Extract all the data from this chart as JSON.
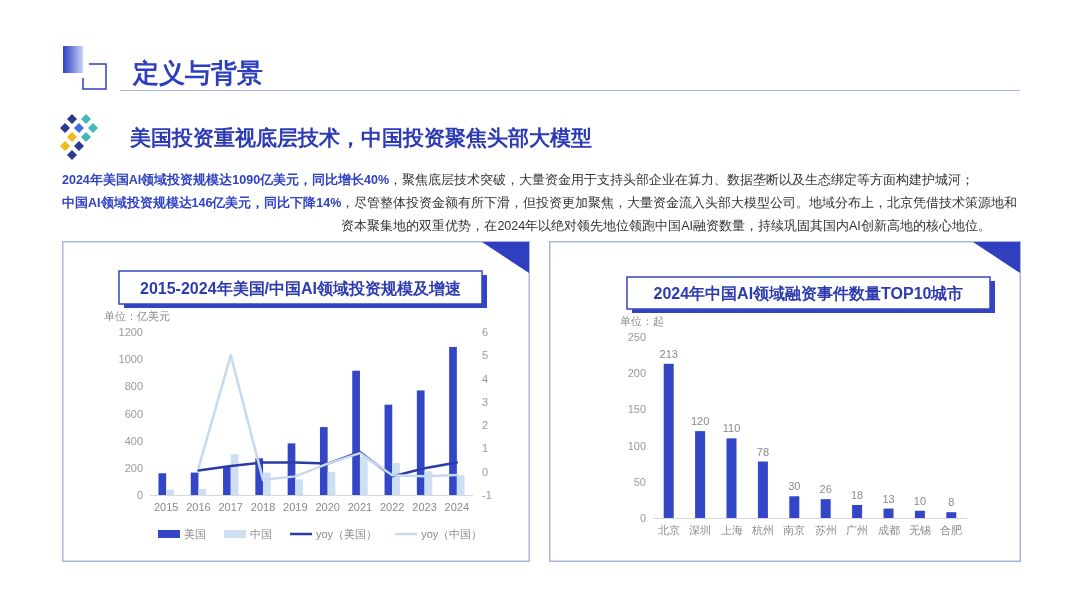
{
  "chart_data": [
    {
      "type": "other",
      "title": "定义与背景",
      "subtitle": "美国投资重视底层技术，中国投资聚焦头部大模型",
      "annotations": [
        "2024年美国AI领域投资规模达1090亿美元，同比增长40%",
        "，聚焦底层技术突破，大量资金用于支持头部企业在算力、数据垄断以及生态绑定等方面构建护城河；",
        "中国AI领域投资规模达146亿美元，同比下降14%",
        "，尽管整体投资金额有所下滑，但投资更加聚焦，大量资金流入头部大模型公司。地域分布上，北京凭借技术策源地和资本聚集地的双重优势，在2024年以绝对领先地位领跑中国AI融资数量，持续巩固其国内AI创新高地的核心地位。"
      ]
    },
    {
      "type": "bar",
      "title": "2015-2024年美国/中国AI领域投资规模及增速",
      "ylabel": "单位：亿美元",
      "categories": [
        "2015",
        "2016",
        "2017",
        "2018",
        "2019",
        "2020",
        "2021",
        "2022",
        "2023",
        "2024"
      ],
      "series": [
        {
          "name": "美国",
          "color": "#3346c7",
          "values": [
            160,
            165,
            210,
            270,
            380,
            500,
            915,
            665,
            770,
            1090
          ]
        },
        {
          "name": "中国",
          "color": "#cddff3",
          "values": [
            40,
            45,
            300,
            165,
            115,
            170,
            280,
            235,
            175,
            146
          ]
        },
        {
          "name": "yoy（美国）",
          "type": "line",
          "axis": "y2",
          "color": "#2d3ba6",
          "values": [
            null,
            0.05,
            0.25,
            0.4,
            0.4,
            0.35,
            0.85,
            -0.2,
            0.15,
            0.4
          ]
        },
        {
          "name": "yoy（中国）",
          "type": "line",
          "axis": "y2",
          "color": "#c6d9ef",
          "values": [
            null,
            0.15,
            5.0,
            -0.35,
            -0.2,
            0.35,
            0.8,
            -0.15,
            -0.2,
            -0.14
          ]
        }
      ],
      "ylim": [
        0,
        1200
      ],
      "yticks": [
        0,
        200,
        400,
        600,
        800,
        1000,
        1200
      ],
      "y2lim": [
        -1,
        6
      ],
      "y2ticks": [
        -1,
        0,
        1,
        2,
        3,
        4,
        5,
        6
      ],
      "legend": "bottom"
    },
    {
      "type": "bar",
      "title": "2024年中国AI领域融资事件数量TOP10城市",
      "ylabel": "单位：起",
      "categories": [
        "北京",
        "深圳",
        "上海",
        "杭州",
        "南京",
        "苏州",
        "广州",
        "成都",
        "无锡",
        "合肥"
      ],
      "series": [
        {
          "color": "#3346c7",
          "values": [
            213,
            120,
            110,
            78,
            30,
            26,
            18,
            13,
            10,
            8
          ]
        }
      ],
      "ylim": [
        0,
        250
      ],
      "yticks": [
        0,
        50,
        100,
        150,
        200,
        250
      ],
      "data_labels": true
    }
  ]
}
